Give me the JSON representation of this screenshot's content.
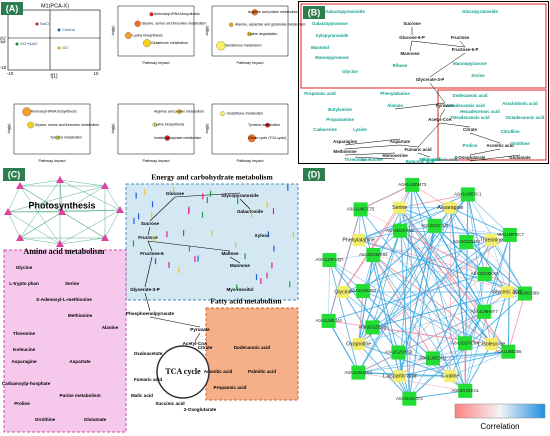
{
  "panels": {
    "a": {
      "label": "(A)",
      "pca": {
        "title": "M1(PCA-X)",
        "x_axis": "t[1]",
        "y_axis": "t[2]",
        "ticks": [
          "-10",
          "10",
          "10",
          "-10"
        ],
        "groups": [
          "Control",
          "GO+NaCl",
          "GO",
          "NaCl"
        ]
      },
      "x_axis": "Pathway Impact",
      "y_axis": "-log(p)",
      "plots": [
        [
          "Aminoacyl-tRNA biosynthesis",
          "Glycine, serine and threonine metabolism",
          "Lysine biosynthesis",
          "Glutathione metabolism"
        ],
        [
          "Arginine and proline metabolism",
          "Alanine, aspartate and glutamate metabolism",
          "Lysine degradation",
          "Glutathione metabolism"
        ],
        [
          "Aminoacyl-tRNA biosynthesis",
          "Glycine, serine and threonine metabolism",
          "Tyrosine metabolism"
        ],
        [
          "Arginine and proline metabolism",
          "Lysine biosynthesis",
          "Inositol phosphate metabolism"
        ],
        [
          "Glutathione metabolism",
          "Tyrosine metabolism",
          "Citrate cycle (TCA cycle)"
        ]
      ]
    },
    "b": {
      "label": "(B)",
      "metabolites": [
        "Galactopyranoside",
        "Glucopyranoside",
        "Galactopyranose",
        "Sucrose",
        "Xylopyranoside",
        "Glucose-6-P",
        "Fructose",
        "Mannitol",
        "Mannopyranose",
        "Fructose-6-P",
        "Mannose",
        "Mannopyranose",
        "Ribose",
        "Glycine",
        "Glycerate-3-P",
        "Serine",
        "Propanoic acid",
        "Phenylalanine",
        "Alanine",
        "Pyruvate",
        "Butylamine",
        "Propanamine",
        "Cadaverine",
        "Lysine",
        "Acetyl-CoA",
        "Asparagine",
        "Aspartate",
        "Citrate",
        "Aconitic acid",
        "Methionine",
        "Homoserine",
        "Fumaric acid",
        "Malic acid",
        "Butanedioic acid",
        "Threonine",
        "Isoleucine",
        "2-Oxoglutarate",
        "Glutamate",
        "Butanoic acid",
        "Dodecanoic acid",
        "Hexadecanoic acid",
        "Arachidonic acid",
        "Tetradecanoic acid",
        "Hexadecenoic acid",
        "Octadecanoic acid",
        "Proline",
        "Ornithine",
        "Citrulline"
      ]
    },
    "c": {
      "label": "(C)",
      "photosynthesis": "Photosynthesis",
      "energy": "Energy and carbohydrate metabolism",
      "amino": "Amino acid metabolism",
      "fatty": "Fatty acid metabolism",
      "tca": "TCA cycle",
      "energy_items": [
        "Glucose",
        "Glycopyranoside",
        "Galactoside",
        "Sucrose",
        "Fructose",
        "Xylose",
        "Fructose-6",
        "Maltose",
        "Mannose",
        "Glycerate-3-P",
        "Myo-inositol",
        "Phosphoenolpyruvate",
        "Pyruvate",
        "Acetyl-CoA"
      ],
      "amino_items": [
        "Glycine",
        "L-trypto phan",
        "Serine",
        "S-Adenosyl-L-methionine",
        "Methionine",
        "Threonine",
        "Isoleucine",
        "Asparagine",
        "Aspartate",
        "Carbamoylp-hosphate",
        "Proline",
        "Ornithine",
        "Glutamate",
        "Alanine",
        "Purine metabolism"
      ],
      "tca_items": [
        "Oxaloacetate",
        "Citrate",
        "Fumaric acid",
        "Malic acid",
        "Succinic acid",
        "Aconitic acid",
        "2-Oxoglutarate"
      ],
      "fatty_items": [
        "Dodecanoic acid",
        "Propanoic acid",
        "Palmitic acid"
      ]
    },
    "d": {
      "label": "(D)",
      "genes": [
        "A0A1U8H9T7",
        "A0A1U8EJ56",
        "A0A2G2YC64",
        "A0A2G2ZKA1",
        "A0A1U8E3G1",
        "A0A2U1K472",
        "A0A2G2VSS3",
        "A0A1U8H2G1",
        "A0A2G2ZEV0",
        "A0A1U8EJ44",
        "A0A2U1K482",
        "A0A1U8FUQ7",
        "A0A2G2WK92",
        "A0A1U8GE75",
        "A0A2G2XYN1",
        "A0A1U8DM73",
        "A0A2G2YJL9",
        "A0A1U8E8C1",
        "A0A2G2ZU44",
        "A0A1U8FRC7",
        "A0A2G2ZKX2",
        "A0A1U8GS89"
      ],
      "metabolites": [
        "Glyceric acid",
        "L-isoleucine",
        "L-valine",
        "L-aspartic acid",
        "Oxoproline",
        "Glycine",
        "Phenylalanine",
        "Serine",
        "Asparagine",
        "Threonine"
      ],
      "legend": "Correlation"
    }
  }
}
